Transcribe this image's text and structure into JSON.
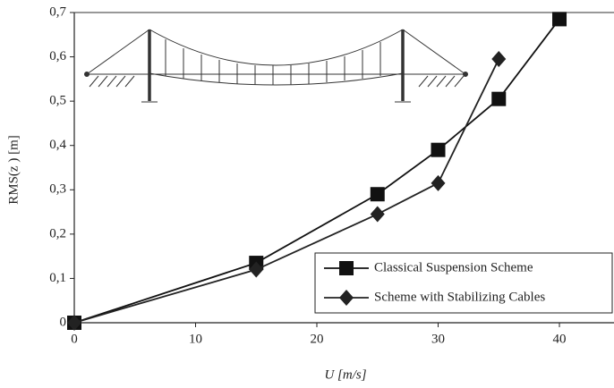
{
  "chart_data": {
    "type": "line",
    "x_label": "U [m/s]",
    "y_label": "RMS(z ) [m]",
    "xlim": [
      0,
      44.5
    ],
    "ylim": [
      0,
      0.7
    ],
    "xticks": [
      0,
      10,
      20,
      30,
      40
    ],
    "yticks": [
      0,
      {
        "value": 0.1,
        "label": "0,1"
      },
      {
        "value": 0.2,
        "label": "0,2"
      },
      {
        "value": 0.3,
        "label": "0,3"
      },
      {
        "value": 0.4,
        "label": "0,4"
      },
      {
        "value": 0.5,
        "label": "0,5"
      },
      {
        "value": 0.6,
        "label": "0,6"
      },
      {
        "value": 0.7,
        "label": "0,7"
      }
    ],
    "legend_position": "lower right",
    "series": [
      {
        "name": "Classical Suspension Scheme",
        "color": "#111111",
        "marker": "square",
        "x": [
          0,
          15,
          25,
          30,
          35,
          40
        ],
        "values": [
          0,
          0.135,
          0.29,
          0.39,
          0.505,
          0.685
        ]
      },
      {
        "name": "Scheme with Stabilizing Cables",
        "color": "#222222",
        "marker": "diamond",
        "x": [
          0,
          15,
          25,
          30,
          35
        ],
        "values": [
          0,
          0.12,
          0.245,
          0.315,
          0.595
        ]
      }
    ]
  }
}
